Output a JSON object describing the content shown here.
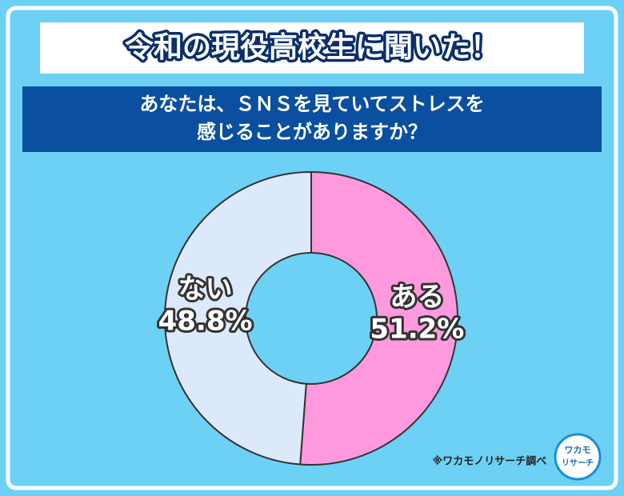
{
  "chart_data": {
    "type": "donut",
    "title": "令和の現役高校生に聞いた！",
    "subtitle": [
      "あなたは、ＳＮＳを見ていてストレスを",
      "感じることがありますか？"
    ],
    "categories": [
      "ある",
      "ない"
    ],
    "values": [
      51.2,
      48.8
    ],
    "value_labels": [
      "51.2%",
      "48.8%"
    ],
    "colors": [
      "#ff99dd",
      "#dbe9fb"
    ],
    "source": "※ワカモノリサーチ調べ",
    "logo": [
      "ワカモ",
      "リサーチ"
    ]
  }
}
